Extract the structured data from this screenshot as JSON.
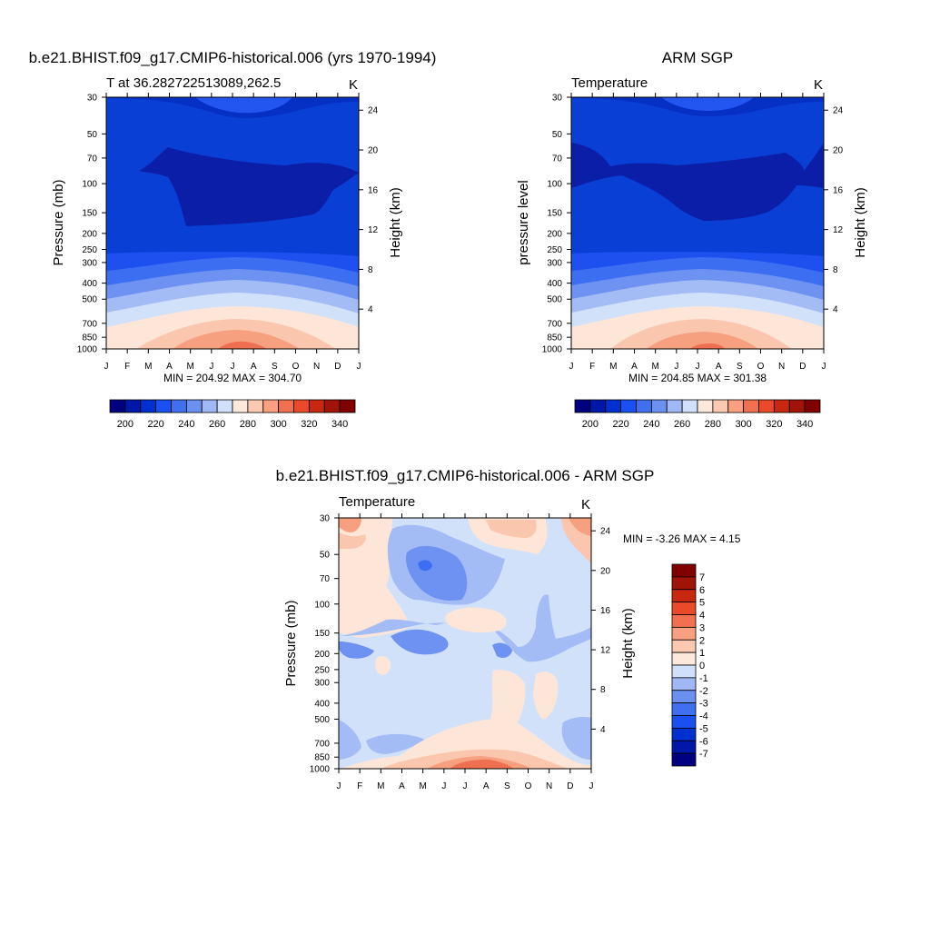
{
  "figure": {
    "units": "K"
  },
  "panels": [
    {
      "main_title": "b.e21.BHIST.f09_g17.CMIP6-historical.006 (yrs 1970-1994)",
      "subtitle": "T at 36.282722513089,262.5",
      "units_label": "K",
      "ylabel_left": "Pressure (mb)",
      "ylabel_right": "Height (km)",
      "minmax_text": "MIN = 204.92 MAX = 304.70"
    },
    {
      "main_title": "ARM SGP",
      "subtitle": "Temperature",
      "units_label": "K",
      "ylabel_left": "pressure level",
      "ylabel_right": "Height (km)",
      "minmax_text": "MIN = 204.85 MAX = 301.38"
    },
    {
      "main_title": "b.e21.BHIST.f09_g17.CMIP6-historical.006 - ARM SGP",
      "subtitle": "Temperature",
      "units_label": "K",
      "ylabel_left": "Pressure (mb)",
      "ylabel_right": "Height (km)",
      "minmax_text": "MIN =  -3.26 MAX =   4.15"
    }
  ],
  "colorbars": {
    "temperature": {
      "orientation": "horizontal",
      "colors": [
        "#000080",
        "#0018a8",
        "#0030d0",
        "#1a50f0",
        "#4070f0",
        "#6b90f0",
        "#a0b8f5",
        "#d0e0fa",
        "#fde8dc",
        "#fbc8b0",
        "#f8a080",
        "#f07050",
        "#e84a2a",
        "#c82810",
        "#a01408",
        "#800000"
      ],
      "tick_labels": [
        "200",
        "220",
        "240",
        "260",
        "280",
        "300",
        "320",
        "340"
      ]
    },
    "difference": {
      "orientation": "vertical",
      "colors": [
        "#000080",
        "#0018a8",
        "#0030d0",
        "#1a50f0",
        "#4070f0",
        "#6b90f0",
        "#a0b8f5",
        "#d0e0fa",
        "#fde8dc",
        "#fbc8b0",
        "#f8a080",
        "#f07050",
        "#e84a2a",
        "#c82810",
        "#a01408",
        "#800000"
      ],
      "tick_labels": [
        "7",
        "6",
        "5",
        "4",
        "3",
        "2",
        "1",
        "0",
        "-1",
        "-2",
        "-3",
        "-4",
        "-5",
        "-6",
        "-7"
      ]
    }
  },
  "chart_data": [
    {
      "type": "heatmap",
      "title": "b.e21.BHIST.f09_g17.CMIP6-historical.006 (yrs 1970-1994)",
      "subtitle": "T at 36.282722513089,262.5",
      "x_tick_labels": [
        "J",
        "F",
        "M",
        "A",
        "M",
        "J",
        "J",
        "A",
        "S",
        "O",
        "N",
        "D",
        "J"
      ],
      "y_pressure_ticks": [
        30,
        50,
        70,
        100,
        150,
        200,
        250,
        300,
        400,
        500,
        700,
        850,
        1000
      ],
      "y_height_ticks": [
        4,
        8,
        12,
        16,
        20,
        24
      ],
      "ylabel": "Pressure (mb)",
      "ylabel_right": "Height (km)",
      "levels": [
        190,
        200,
        210,
        220,
        230,
        240,
        250,
        260,
        270,
        280,
        290,
        300,
        310,
        320,
        330,
        340
      ],
      "minmax": [
        204.92,
        304.7
      ]
    },
    {
      "type": "heatmap",
      "title": "ARM SGP",
      "subtitle": "Temperature",
      "x_tick_labels": [
        "J",
        "F",
        "M",
        "A",
        "M",
        "J",
        "J",
        "A",
        "S",
        "O",
        "N",
        "D",
        "J"
      ],
      "y_pressure_ticks": [
        30,
        50,
        70,
        100,
        150,
        200,
        250,
        300,
        400,
        500,
        700,
        850,
        1000
      ],
      "y_height_ticks": [
        4,
        8,
        12,
        16,
        20,
        24
      ],
      "ylabel": "pressure level",
      "ylabel_right": "Height (km)",
      "levels": [
        190,
        200,
        210,
        220,
        230,
        240,
        250,
        260,
        270,
        280,
        290,
        300,
        310,
        320,
        330,
        340
      ],
      "minmax": [
        204.85,
        301.38
      ]
    },
    {
      "type": "heatmap",
      "title": "b.e21.BHIST.f09_g17.CMIP6-historical.006 - ARM SGP",
      "subtitle": "Temperature",
      "x_tick_labels": [
        "J",
        "F",
        "M",
        "A",
        "M",
        "J",
        "J",
        "A",
        "S",
        "O",
        "N",
        "D",
        "J"
      ],
      "y_pressure_ticks": [
        30,
        50,
        70,
        100,
        150,
        200,
        250,
        300,
        400,
        500,
        700,
        850,
        1000
      ],
      "y_height_ticks": [
        4,
        8,
        12,
        16,
        20,
        24
      ],
      "ylabel": "Pressure (mb)",
      "ylabel_right": "Height (km)",
      "levels": [
        -7,
        -6,
        -5,
        -4,
        -3,
        -2,
        -1,
        0,
        1,
        2,
        3,
        4,
        5,
        6,
        7
      ],
      "minmax": [
        -3.26,
        4.15
      ]
    }
  ]
}
